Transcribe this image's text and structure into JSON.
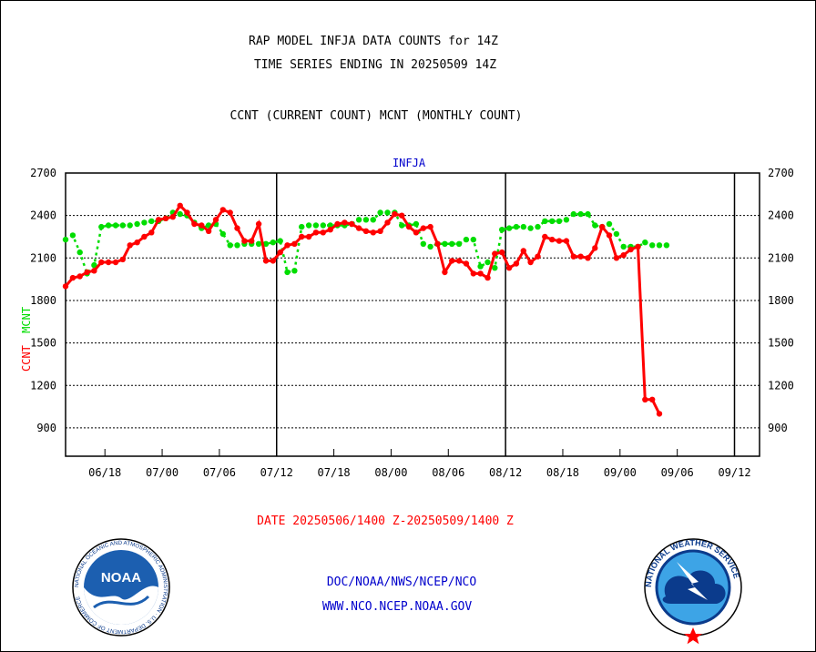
{
  "header": {
    "title_line1": "RAP MODEL INFJA DATA COUNTS for 14Z",
    "title_line2": "TIME SERIES ENDING IN 20250509 14Z",
    "subtitle": "CCNT (CURRENT COUNT) MCNT (MONTHLY COUNT)"
  },
  "plot_label": "INFJA",
  "axis_labels": {
    "ccnt": "CCNT",
    "mcnt": "MCNT"
  },
  "date_range": "DATE 20250506/1400 Z-20250509/1400 Z",
  "footer": {
    "line1": "DOC/NOAA/NWS/NCEP/NCO",
    "line2": "WWW.NCO.NCEP.NOAA.GOV"
  },
  "logos": {
    "left": {
      "icon": "noaa-logo-icon",
      "text": "NOAA",
      "ring_text": "NATIONAL OCEANIC AND ATMOSPHERIC ADMINISTRATION · U.S. DEPARTMENT OF COMMERCE"
    },
    "right": {
      "icon": "nws-logo-icon",
      "ring_text": "NATIONAL WEATHER SERVICE"
    }
  },
  "colors": {
    "ccnt": "#ff0000",
    "mcnt": "#00dd00",
    "date": "#ff0000",
    "footer": "#0000cc",
    "plot_label": "#0000cc"
  },
  "chart_data": {
    "type": "line",
    "title": "RAP MODEL INFJA DATA COUNTS for 14Z",
    "ylim": [
      700,
      2700
    ],
    "yticks": [
      900,
      1200,
      1500,
      1800,
      2100,
      2400,
      2700
    ],
    "xlim": [
      0,
      97
    ],
    "xticks": [
      {
        "x": 5.5,
        "label": "06/18"
      },
      {
        "x": 13.5,
        "label": "07/00"
      },
      {
        "x": 21.5,
        "label": "07/06"
      },
      {
        "x": 29.5,
        "label": "07/12"
      },
      {
        "x": 37.5,
        "label": "07/18"
      },
      {
        "x": 45.5,
        "label": "08/00"
      },
      {
        "x": 53.5,
        "label": "08/06"
      },
      {
        "x": 61.5,
        "label": "08/12"
      },
      {
        "x": 69.5,
        "label": "08/18"
      },
      {
        "x": 77.5,
        "label": "09/00"
      },
      {
        "x": 85.5,
        "label": "09/06"
      },
      {
        "x": 93.5,
        "label": "09/12"
      }
    ],
    "day_boundaries": [
      29.5,
      61.5,
      93.5
    ],
    "grid": true,
    "series": [
      {
        "name": "CCNT",
        "values": [
          1900,
          1960,
          1970,
          2000,
          2010,
          2070,
          2070,
          2070,
          2090,
          2190,
          2210,
          2250,
          2280,
          2370,
          2380,
          2390,
          2470,
          2420,
          2340,
          2330,
          2290,
          2370,
          2440,
          2420,
          2310,
          2220,
          2220,
          2340,
          2080,
          2080,
          2140,
          2190,
          2200,
          2250,
          2250,
          2280,
          2280,
          2300,
          2340,
          2350,
          2340,
          2310,
          2290,
          2280,
          2290,
          2350,
          2410,
          2400,
          2320,
          2280,
          2310,
          2320,
          2200,
          2000,
          2080,
          2080,
          2060,
          1990,
          1990,
          1960,
          2130,
          2140,
          2030,
          2060,
          2150,
          2070,
          2110,
          2250,
          2230,
          2220,
          2220,
          2110,
          2110,
          2100,
          2170,
          2320,
          2260,
          2100,
          2120,
          2160,
          2180,
          1100,
          1100,
          1000
        ]
      },
      {
        "name": "MCNT",
        "values": [
          2230,
          2260,
          2140,
          1990,
          2050,
          2320,
          2330,
          2330,
          2330,
          2330,
          2340,
          2350,
          2360,
          2360,
          2380,
          2420,
          2410,
          2400,
          2350,
          2310,
          2330,
          2340,
          2270,
          2190,
          2190,
          2200,
          2200,
          2200,
          2200,
          2210,
          2220,
          2000,
          2010,
          2320,
          2330,
          2330,
          2330,
          2330,
          2330,
          2330,
          2340,
          2370,
          2370,
          2370,
          2420,
          2420,
          2420,
          2330,
          2330,
          2340,
          2200,
          2180,
          2200,
          2200,
          2200,
          2200,
          2230,
          2230,
          2040,
          2070,
          2030,
          2300,
          2310,
          2320,
          2320,
          2310,
          2320,
          2360,
          2360,
          2360,
          2370,
          2410,
          2410,
          2410,
          2330,
          2320,
          2340,
          2270,
          2180,
          2180,
          2180,
          2210,
          2190,
          2190,
          2190
        ]
      }
    ]
  }
}
